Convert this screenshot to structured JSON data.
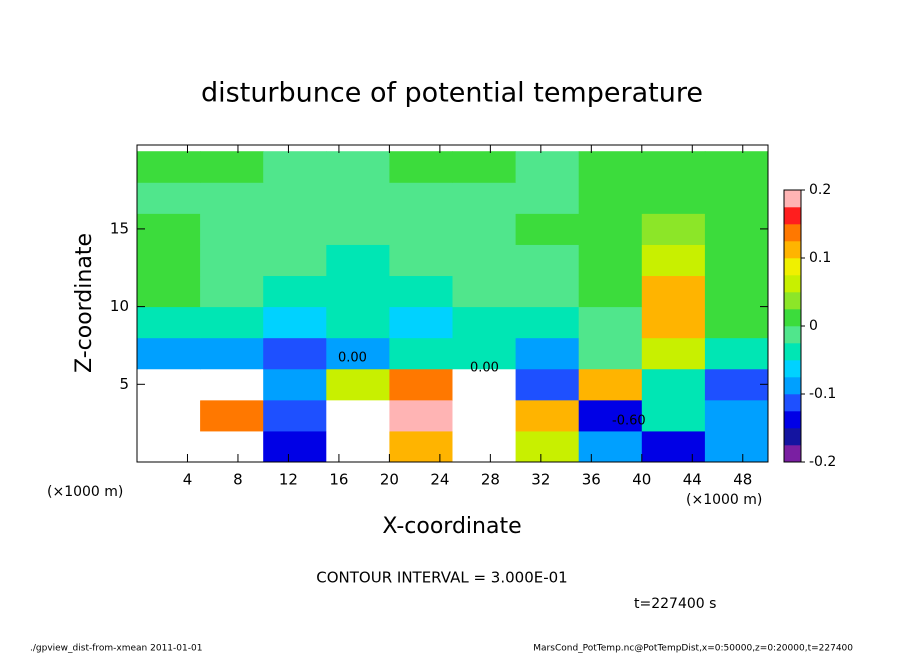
{
  "chart_data": {
    "type": "heatmap",
    "title": "disturbunce of potential temperature",
    "xlabel": "X-coordinate",
    "ylabel": "Z-coordinate",
    "x_unit": "(×1000 m)",
    "y_unit": "(×1000 m)",
    "contour_note": "CONTOUR INTERVAL = 3.000E-01",
    "time_note": "t=227400 s",
    "footer_left": "./gpview_dist-from-xmean  2011-01-01",
    "footer_right": "MarsCond_PotTemp.nc@PotTempDist,x=0:50000,z=0:20000,t=227400",
    "contour_labels": [
      "0.00",
      "0.00",
      "-0.60"
    ],
    "x": [
      2.5,
      7.5,
      12.5,
      17.5,
      22.5,
      27.5,
      32.5,
      37.5,
      42.5,
      47.5
    ],
    "y": [
      1,
      3,
      5,
      7,
      9,
      11,
      13,
      15,
      17,
      19
    ],
    "values": [
      [
        0.25,
        0.25,
        -0.15,
        0.25,
        0.1,
        0.25,
        0.05,
        -0.1,
        -0.15,
        -0.1
      ],
      [
        0.25,
        0.15,
        -0.12,
        0.25,
        0.2,
        0.25,
        0.1,
        -0.15,
        -0.05,
        -0.08
      ],
      [
        0.25,
        0.25,
        -0.1,
        0.05,
        0.15,
        0.25,
        -0.12,
        0.1,
        -0.05,
        -0.12
      ],
      [
        -0.08,
        -0.1,
        -0.12,
        -0.08,
        -0.05,
        -0.05,
        -0.08,
        -0.02,
        0.05,
        -0.03
      ],
      [
        -0.03,
        -0.04,
        -0.06,
        -0.05,
        -0.06,
        -0.04,
        -0.05,
        -0.02,
        0.12,
        0.02
      ],
      [
        0.0,
        -0.02,
        -0.03,
        -0.04,
        -0.03,
        -0.02,
        -0.02,
        0.0,
        0.1,
        0.02
      ],
      [
        0.0,
        -0.02,
        -0.02,
        -0.03,
        -0.02,
        -0.02,
        -0.01,
        0.01,
        0.06,
        0.02
      ],
      [
        0.0,
        -0.01,
        -0.02,
        -0.02,
        -0.01,
        -0.01,
        0.0,
        0.0,
        0.04,
        0.01
      ],
      [
        -0.01,
        -0.01,
        -0.02,
        -0.02,
        -0.01,
        -0.01,
        -0.01,
        0.0,
        0.02,
        0.0
      ],
      [
        0.0,
        0.0,
        -0.01,
        -0.01,
        0.0,
        0.0,
        -0.01,
        0.0,
        0.01,
        0.0
      ]
    ],
    "xlim": [
      0,
      50
    ],
    "ylim": [
      0,
      20.4
    ],
    "xticks": [
      4,
      8,
      12,
      16,
      20,
      24,
      28,
      32,
      36,
      40,
      44,
      48
    ],
    "yticks": [
      5,
      10,
      15
    ],
    "clim": [
      -0.2,
      0.2
    ],
    "cticks": [
      -0.2,
      -0.1,
      0,
      0.1,
      0.2
    ],
    "colors": [
      "#7a1fa2",
      "#1414a0",
      "#0000e6",
      "#1e50ff",
      "#00a0ff",
      "#00d2ff",
      "#00e6b4",
      "#50e68c",
      "#3cdc3c",
      "#8ce628",
      "#c8f000",
      "#f0f000",
      "#ffb400",
      "#ff7800",
      "#ff1e1e",
      "#ffb4b4"
    ],
    "over_color": "#ffffff"
  }
}
